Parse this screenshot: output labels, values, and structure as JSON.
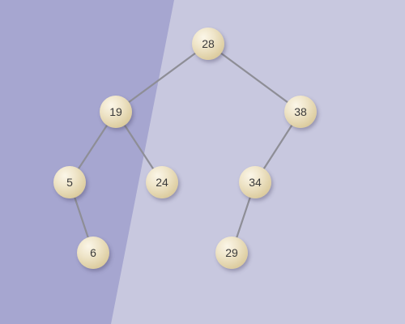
{
  "colors": {
    "background_light": "#c8c8df",
    "background_dark": "#a6a6d0",
    "edge": "#8e8e96",
    "node_fill": "#efe5c9",
    "label": "#3a3a3a"
  },
  "tree": {
    "nodes": [
      {
        "id": "n28",
        "label": "28"
      },
      {
        "id": "n19",
        "label": "19"
      },
      {
        "id": "n38",
        "label": "38"
      },
      {
        "id": "n5",
        "label": "5"
      },
      {
        "id": "n24",
        "label": "24"
      },
      {
        "id": "n34",
        "label": "34"
      },
      {
        "id": "n6",
        "label": "6"
      },
      {
        "id": "n29",
        "label": "29"
      }
    ],
    "edges": [
      {
        "from": "n28",
        "to": "n19"
      },
      {
        "from": "n28",
        "to": "n38"
      },
      {
        "from": "n19",
        "to": "n5"
      },
      {
        "from": "n19",
        "to": "n24"
      },
      {
        "from": "n38",
        "to": "n34"
      },
      {
        "from": "n5",
        "to": "n6"
      },
      {
        "from": "n34",
        "to": "n29"
      }
    ]
  }
}
